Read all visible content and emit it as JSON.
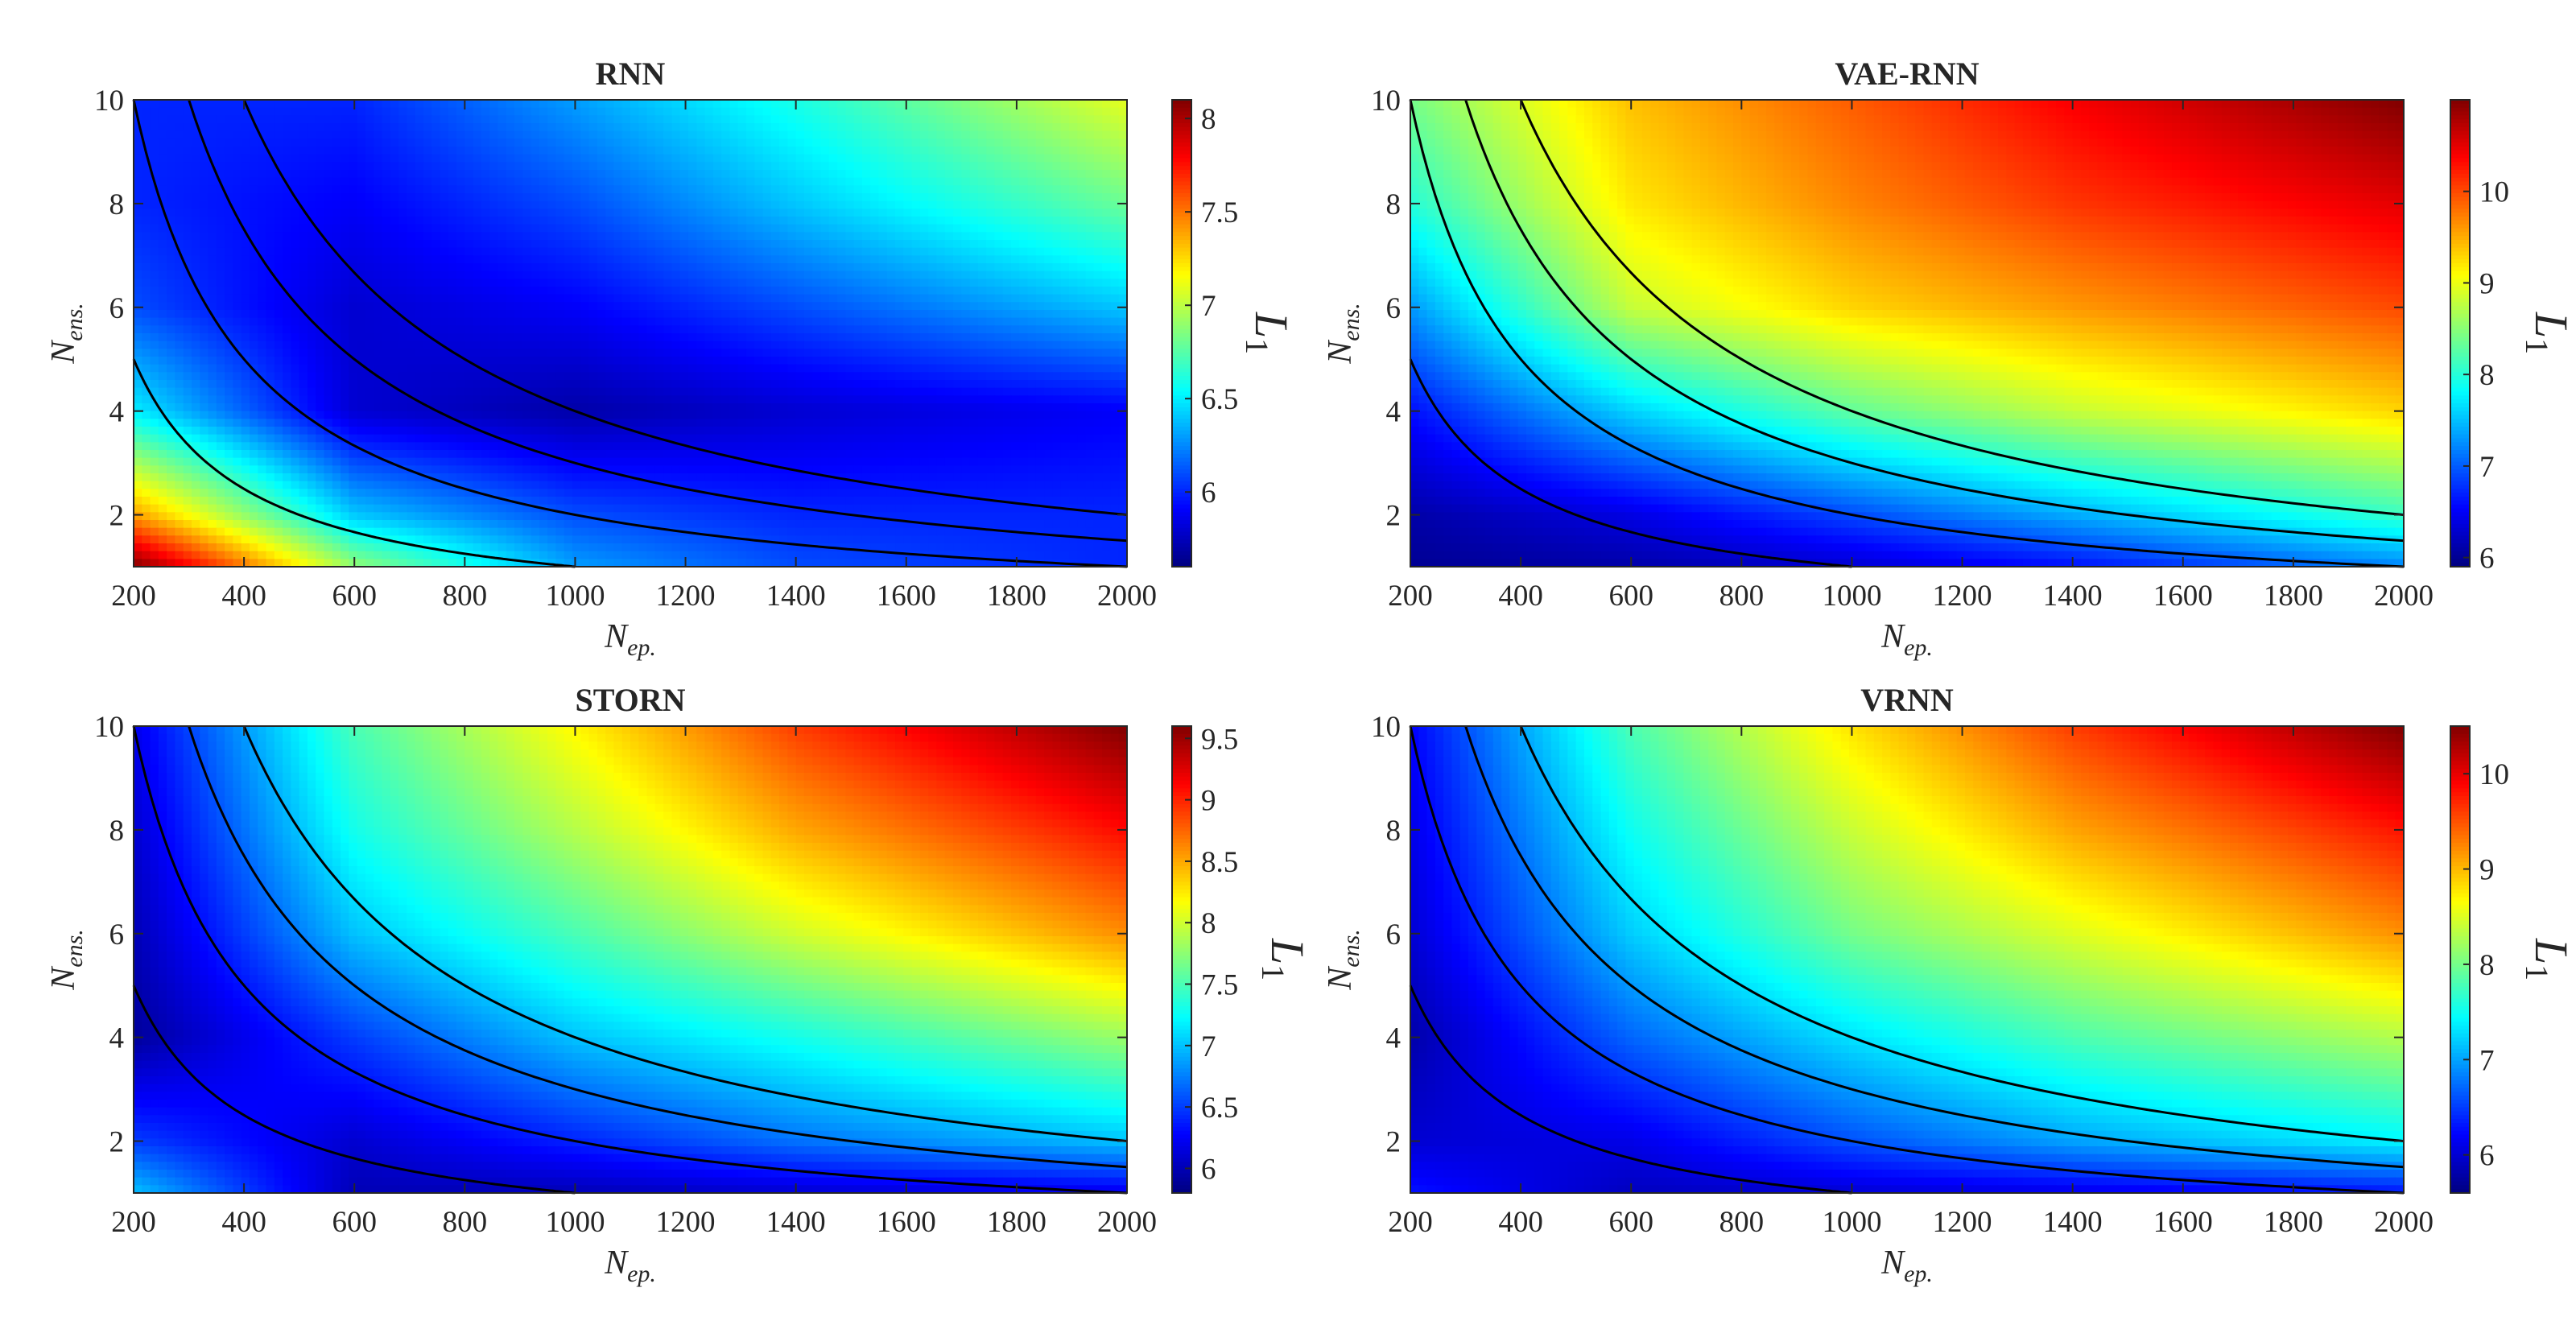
{
  "chart_data": [
    {
      "type": "heatmap",
      "title": "RNN",
      "xlabel": "N_ep.",
      "xlabel_main": "N",
      "xlabel_sub": "ep.",
      "ylabel": "N_ens.",
      "ylabel_main": "N",
      "ylabel_sub": "ens.",
      "xlim": [
        200,
        2000
      ],
      "ylim": [
        1,
        10
      ],
      "xticks": [
        200,
        400,
        600,
        800,
        1000,
        1200,
        1400,
        1600,
        1800,
        2000
      ],
      "yticks": [
        2,
        4,
        6,
        8,
        10
      ],
      "colorbar": {
        "label": "L_1",
        "label_main": "L",
        "label_sub": "1",
        "range": [
          5.6,
          8.1
        ],
        "ticks": [
          6,
          6.5,
          7,
          7.5,
          8
        ],
        "tick_labels": [
          "6",
          "6.5",
          "7",
          "7.5",
          "8"
        ],
        "colormap": "jet"
      },
      "contours": [
        {
          "label": "N_ep. x N_ens. = 1000",
          "product": 1000
        },
        {
          "label": "N_ep. x N_ens. = 2000",
          "product": 2000
        },
        {
          "label": "N_ep. x N_ens. = 3000",
          "product": 3000
        },
        {
          "label": "N_ep. x N_ens. = 4000",
          "product": 4000
        }
      ],
      "field_samples": {
        "x": [
          200,
          600,
          1000,
          1400,
          2000
        ],
        "y": [
          1,
          2,
          4,
          6,
          8,
          10
        ],
        "values": [
          [
            8.1,
            6.9,
            6.3,
            6.1,
            6.0
          ],
          [
            7.4,
            6.4,
            6.1,
            6.0,
            6.0
          ],
          [
            6.5,
            5.8,
            5.7,
            5.8,
            5.9
          ],
          [
            6.1,
            5.8,
            5.9,
            6.1,
            6.4
          ],
          [
            6.0,
            5.9,
            6.1,
            6.4,
            6.8
          ],
          [
            6.0,
            6.0,
            6.3,
            6.6,
            7.1
          ]
        ]
      }
    },
    {
      "type": "heatmap",
      "title": "VAE-RNN",
      "xlabel": "N_ep.",
      "xlabel_main": "N",
      "xlabel_sub": "ep.",
      "ylabel": "N_ens.",
      "ylabel_main": "N",
      "ylabel_sub": "ens.",
      "xlim": [
        200,
        2000
      ],
      "ylim": [
        1,
        10
      ],
      "xticks": [
        200,
        400,
        600,
        800,
        1000,
        1200,
        1400,
        1600,
        1800,
        2000
      ],
      "yticks": [
        2,
        4,
        6,
        8,
        10
      ],
      "colorbar": {
        "label": "L_1",
        "label_main": "L",
        "label_sub": "1",
        "range": [
          5.9,
          11.0
        ],
        "ticks": [
          6,
          7,
          8,
          9,
          10
        ],
        "tick_labels": [
          "6",
          "7",
          "8",
          "9",
          "10"
        ],
        "colormap": "jet"
      },
      "contours": [
        {
          "label": "N_ep. x N_ens. = 1000",
          "product": 1000
        },
        {
          "label": "N_ep. x N_ens. = 2000",
          "product": 2000
        },
        {
          "label": "N_ep. x N_ens. = 3000",
          "product": 3000
        },
        {
          "label": "N_ep. x N_ens. = 4000",
          "product": 4000
        }
      ],
      "field_samples": {
        "x": [
          200,
          600,
          1000,
          1400,
          2000
        ],
        "y": [
          1,
          2,
          4,
          6,
          8,
          10
        ],
        "values": [
          [
            6.0,
            6.1,
            6.3,
            6.6,
            7.2
          ],
          [
            6.1,
            6.4,
            6.9,
            7.4,
            8.1
          ],
          [
            6.6,
            7.6,
            8.3,
            8.8,
            9.3
          ],
          [
            7.3,
            8.8,
            9.3,
            9.6,
            10.0
          ],
          [
            8.0,
            9.2,
            9.7,
            10.1,
            10.5
          ],
          [
            8.4,
            9.4,
            9.9,
            10.4,
            11.0
          ]
        ]
      }
    },
    {
      "type": "heatmap",
      "title": "STORN",
      "xlabel": "N_ep.",
      "xlabel_main": "N",
      "xlabel_sub": "ep.",
      "ylabel": "N_ens.",
      "ylabel_main": "N",
      "ylabel_sub": "ens.",
      "xlim": [
        200,
        2000
      ],
      "ylim": [
        1,
        10
      ],
      "xticks": [
        200,
        400,
        600,
        800,
        1000,
        1200,
        1400,
        1600,
        1800,
        2000
      ],
      "yticks": [
        2,
        4,
        6,
        8,
        10
      ],
      "colorbar": {
        "label": "L_1",
        "label_main": "L",
        "label_sub": "1",
        "range": [
          5.8,
          9.6
        ],
        "ticks": [
          6,
          6.5,
          7,
          7.5,
          8,
          8.5,
          9,
          9.5
        ],
        "tick_labels": [
          "6",
          "6.5",
          "7",
          "7.5",
          "8",
          "8.5",
          "9",
          "9.5"
        ],
        "colormap": "jet"
      },
      "contours": [
        {
          "label": "N_ep. x N_ens. = 1000",
          "product": 1000
        },
        {
          "label": "N_ep. x N_ens. = 2000",
          "product": 2000
        },
        {
          "label": "N_ep. x N_ens. = 3000",
          "product": 3000
        },
        {
          "label": "N_ep. x N_ens. = 4000",
          "product": 4000
        }
      ],
      "field_samples": {
        "x": [
          200,
          600,
          1000,
          1400,
          2000
        ],
        "y": [
          1,
          2,
          4,
          6,
          8,
          10
        ],
        "values": [
          [
            7.0,
            6.0,
            6.0,
            6.1,
            6.2
          ],
          [
            6.5,
            6.1,
            6.4,
            6.7,
            7.0
          ],
          [
            5.9,
            6.5,
            7.0,
            7.3,
            7.8
          ],
          [
            6.0,
            7.0,
            7.5,
            8.0,
            8.6
          ],
          [
            6.1,
            7.3,
            7.9,
            8.5,
            9.1
          ],
          [
            6.2,
            7.5,
            8.2,
            8.9,
            9.6
          ]
        ]
      }
    },
    {
      "type": "heatmap",
      "title": "VRNN",
      "xlabel": "N_ep.",
      "xlabel_main": "N",
      "xlabel_sub": "ep.",
      "ylabel": "N_ens.",
      "ylabel_main": "N",
      "ylabel_sub": "ens.",
      "xlim": [
        200,
        2000
      ],
      "ylim": [
        1,
        10
      ],
      "xticks": [
        200,
        400,
        600,
        800,
        1000,
        1200,
        1400,
        1600,
        1800,
        2000
      ],
      "yticks": [
        2,
        4,
        6,
        8,
        10
      ],
      "colorbar": {
        "label": "L_1",
        "label_main": "L",
        "label_sub": "1",
        "range": [
          5.6,
          10.5
        ],
        "ticks": [
          6,
          7,
          8,
          9,
          10
        ],
        "tick_labels": [
          "6",
          "7",
          "8",
          "9",
          "10"
        ],
        "colormap": "jet"
      },
      "contours": [
        {
          "label": "N_ep. x N_ens. = 1000",
          "product": 1000
        },
        {
          "label": "N_ep. x N_ens. = 2000",
          "product": 2000
        },
        {
          "label": "N_ep. x N_ens. = 3000",
          "product": 3000
        },
        {
          "label": "N_ep. x N_ens. = 4000",
          "product": 4000
        }
      ],
      "field_samples": {
        "x": [
          200,
          600,
          1000,
          1400,
          2000
        ],
        "y": [
          1,
          2,
          4,
          6,
          8,
          10
        ],
        "values": [
          [
            6.3,
            5.9,
            6.0,
            6.1,
            6.3
          ],
          [
            6.0,
            6.1,
            6.6,
            7.0,
            7.4
          ],
          [
            5.8,
            6.7,
            7.3,
            7.8,
            8.3
          ],
          [
            6.0,
            7.2,
            8.0,
            8.5,
            9.2
          ],
          [
            6.1,
            7.5,
            8.4,
            9.1,
            9.8
          ],
          [
            6.2,
            7.8,
            8.8,
            9.6,
            10.5
          ]
        ]
      }
    }
  ]
}
